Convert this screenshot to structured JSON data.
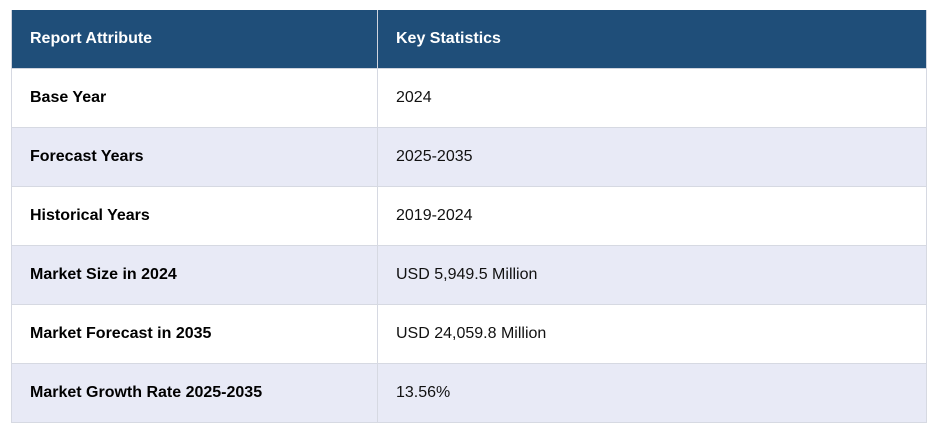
{
  "table": {
    "headers": {
      "attribute": "Report Attribute",
      "statistics": "Key Statistics"
    },
    "rows": [
      {
        "attribute": "Base Year",
        "value": "2024"
      },
      {
        "attribute": "Forecast Years",
        "value": "2025-2035"
      },
      {
        "attribute": "Historical Years",
        "value": "2019-2024"
      },
      {
        "attribute": "Market Size in 2024",
        "value": "USD 5,949.5 Million"
      },
      {
        "attribute": "Market Forecast in 2035",
        "value": "USD 24,059.8 Million"
      },
      {
        "attribute": "Market Growth Rate 2025-2035",
        "value": "13.56%"
      }
    ]
  },
  "colors": {
    "header_bg": "#1f4e79",
    "header_text": "#ffffff",
    "row_alt_bg": "#e8eaf6",
    "row_bg": "#ffffff"
  }
}
